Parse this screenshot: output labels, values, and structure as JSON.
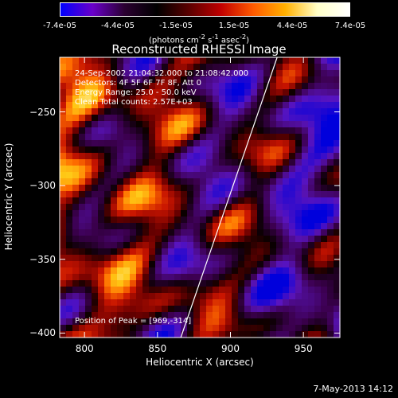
{
  "colorbar": {
    "ticks": [
      "-7.4e-05",
      "-4.4e-05",
      "-1.5e-05",
      "1.5e-05",
      "4.4e-05",
      "7.4e-05"
    ],
    "unit_html": "(photons cm<sup>-2</sup> s<sup>-1</sup> asec<sup>-2</sup>)",
    "colors": [
      "#0000ff",
      "#6a00c8",
      "#2a0030",
      "#000000",
      "#5a0000",
      "#c00000",
      "#ff5a00",
      "#ffb000",
      "#ffffc8",
      "#ffffff"
    ]
  },
  "chart_data": {
    "type": "heatmap",
    "title": "Reconstructed RHESSI Image",
    "xlabel": "Heliocentric X (arcsec)",
    "ylabel": "Heliocentric Y (arcsec)",
    "xlim": [
      783,
      975
    ],
    "ylim": [
      -403,
      -213
    ],
    "xticks": [
      800,
      850,
      900,
      950
    ],
    "yticks": [
      -250,
      -300,
      -350,
      -400
    ],
    "annotations": [
      "24-Sep-2002 21:04:32.000 to 21:08:42.000",
      "Detectors: 4F 5F 6F 7F 8F, Att 0",
      "Energy Range: 25.0 - 50.0 keV",
      "Clean    Total counts: 2.57E+03"
    ],
    "peak_label": "Position of Peak = [969,-314]",
    "limb_line": [
      [
        866,
        -403
      ],
      [
        932,
        -213
      ]
    ]
  },
  "footer": {
    "timestamp": "7-May-2013 14:12"
  }
}
